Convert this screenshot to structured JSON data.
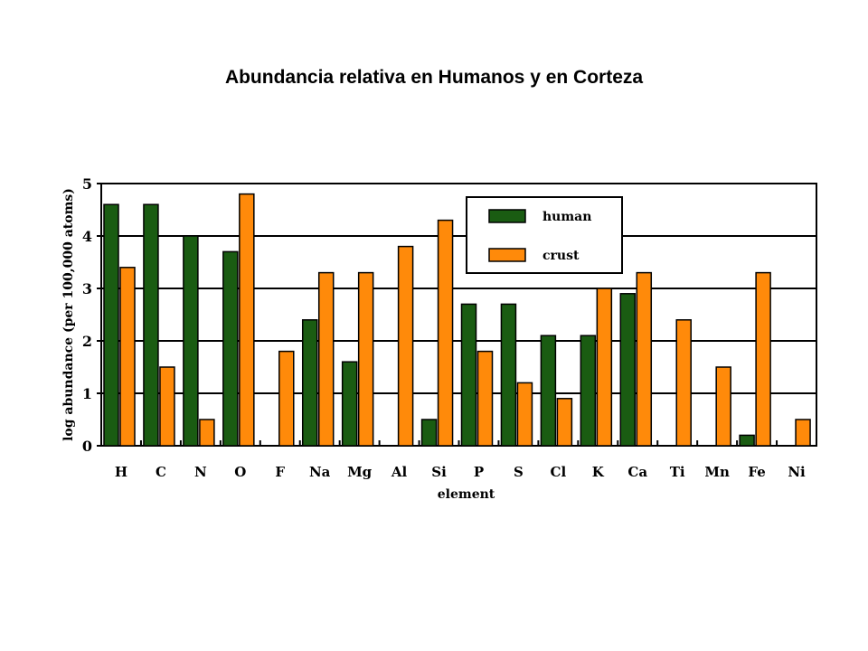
{
  "page": {
    "title": "Abundancia relativa en Humanos y en Corteza"
  },
  "chart_data": {
    "type": "bar",
    "title": "Abundancia relativa en Humanos y en Corteza",
    "xlabel": "element",
    "ylabel": "log abundance (per 100,000 atoms)",
    "ylim": [
      0,
      5
    ],
    "yticks": [
      "0",
      "1",
      "2",
      "3",
      "4",
      "5"
    ],
    "grid": true,
    "legend_position": "top-right",
    "categories": [
      "H",
      "C",
      "N",
      "O",
      "F",
      "Na",
      "Mg",
      "Al",
      "Si",
      "P",
      "S",
      "Cl",
      "K",
      "Ca",
      "Ti",
      "Mn",
      "Fe",
      "Ni"
    ],
    "series": [
      {
        "name": "human",
        "color": "#1a5c12",
        "values": [
          4.6,
          4.6,
          4.0,
          3.7,
          0,
          2.4,
          1.6,
          0,
          0.5,
          2.7,
          2.7,
          2.1,
          2.1,
          2.9,
          0,
          0,
          0.2,
          0
        ]
      },
      {
        "name": "crust",
        "color": "#ff8a0a",
        "values": [
          3.4,
          1.5,
          0.5,
          4.8,
          1.8,
          3.3,
          3.3,
          3.8,
          4.3,
          1.8,
          1.2,
          0.9,
          3.0,
          3.3,
          2.4,
          1.5,
          3.3,
          0.5
        ]
      }
    ]
  }
}
